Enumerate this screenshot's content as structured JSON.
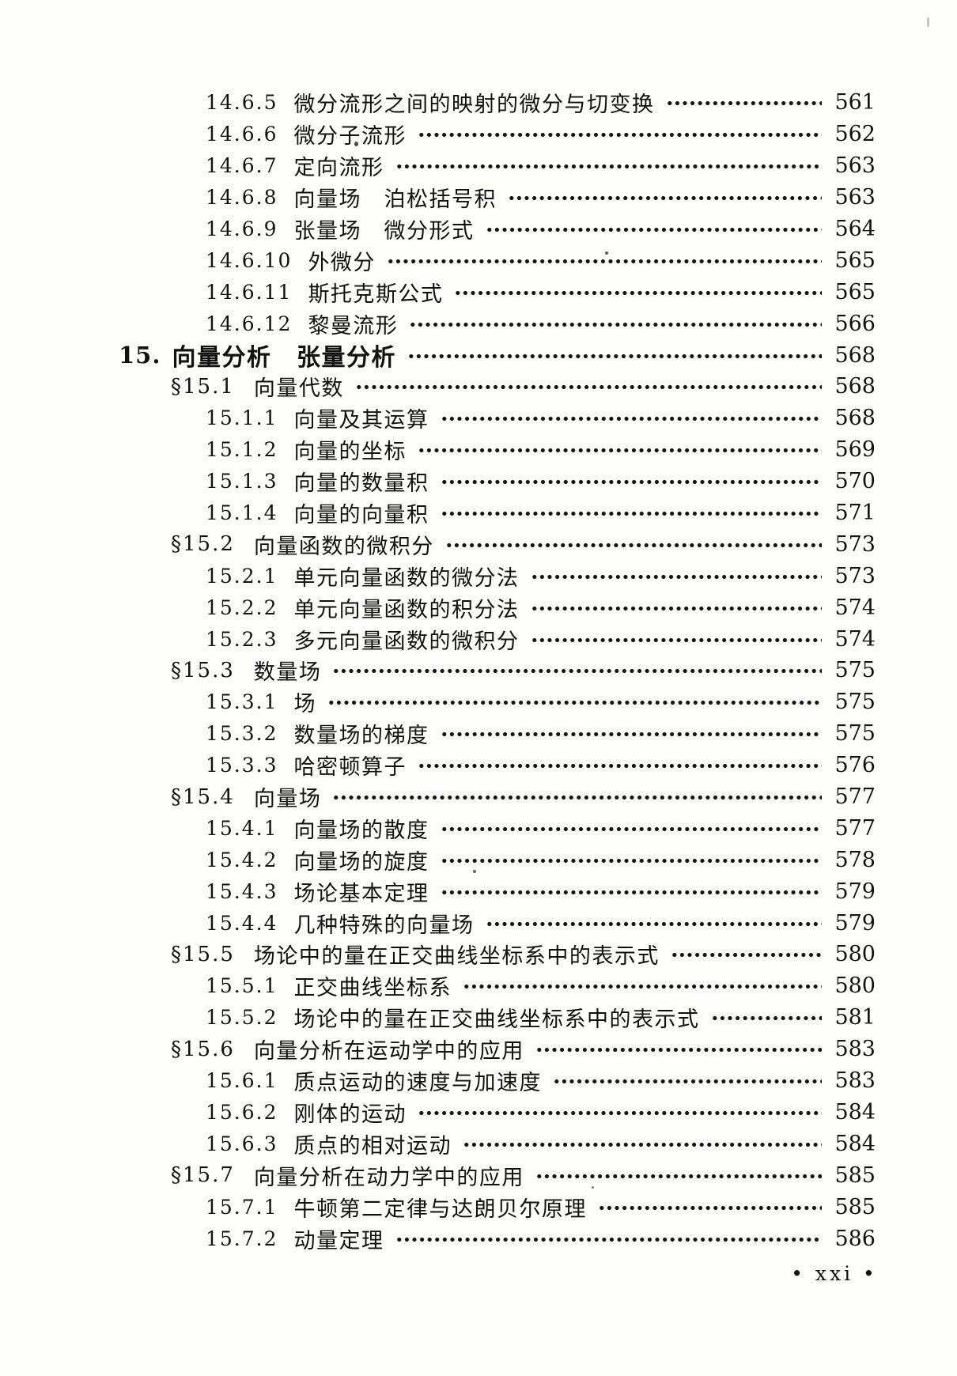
{
  "page": {
    "footer": "•  xxi  •"
  },
  "toc": {
    "entries": [
      {
        "level": "sub",
        "num": "14.6.5",
        "title": "微分流形之间的映射的微分与切变换",
        "page": "561"
      },
      {
        "level": "sub",
        "num": "14.6.6",
        "title": "微分子流形",
        "page": "562"
      },
      {
        "level": "sub",
        "num": "14.6.7",
        "title": "定向流形",
        "page": "563"
      },
      {
        "level": "sub",
        "num": "14.6.8",
        "title": "向量场　泊松括号积",
        "page": "563"
      },
      {
        "level": "sub",
        "num": "14.6.9",
        "title": "张量场　微分形式",
        "page": "564"
      },
      {
        "level": "sub",
        "num": "14.6.10",
        "title": "外微分",
        "page": "565"
      },
      {
        "level": "sub",
        "num": "14.6.11",
        "title": "斯托克斯公式",
        "page": "565"
      },
      {
        "level": "sub",
        "num": "14.6.12",
        "title": "黎曼流形",
        "page": "566"
      },
      {
        "level": "chapter",
        "num": "15.",
        "title": "向量分析　张量分析",
        "page": "568"
      },
      {
        "level": "section",
        "num": "§15.1",
        "title": "向量代数",
        "page": "568"
      },
      {
        "level": "sub",
        "num": "15.1.1",
        "title": "向量及其运算",
        "page": "568"
      },
      {
        "level": "sub",
        "num": "15.1.2",
        "title": "向量的坐标",
        "page": "569"
      },
      {
        "level": "sub",
        "num": "15.1.3",
        "title": "向量的数量积",
        "page": "570"
      },
      {
        "level": "sub",
        "num": "15.1.4",
        "title": "向量的向量积",
        "page": "571"
      },
      {
        "level": "section",
        "num": "§15.2",
        "title": "向量函数的微积分",
        "page": "573"
      },
      {
        "level": "sub",
        "num": "15.2.1",
        "title": "单元向量函数的微分法",
        "page": "573"
      },
      {
        "level": "sub",
        "num": "15.2.2",
        "title": "单元向量函数的积分法",
        "page": "574"
      },
      {
        "level": "sub",
        "num": "15.2.3",
        "title": "多元向量函数的微积分",
        "page": "574"
      },
      {
        "level": "section",
        "num": "§15.3",
        "title": "数量场",
        "page": "575"
      },
      {
        "level": "sub",
        "num": "15.3.1",
        "title": "场",
        "page": "575"
      },
      {
        "level": "sub",
        "num": "15.3.2",
        "title": "数量场的梯度",
        "page": "575"
      },
      {
        "level": "sub",
        "num": "15.3.3",
        "title": "哈密顿算子",
        "page": "576"
      },
      {
        "level": "section",
        "num": "§15.4",
        "title": "向量场",
        "page": "577"
      },
      {
        "level": "sub",
        "num": "15.4.1",
        "title": "向量场的散度",
        "page": "577"
      },
      {
        "level": "sub",
        "num": "15.4.2",
        "title": "向量场的旋度",
        "page": "578"
      },
      {
        "level": "sub",
        "num": "15.4.3",
        "title": "场论基本定理",
        "page": "579"
      },
      {
        "level": "sub",
        "num": "15.4.4",
        "title": "几种特殊的向量场",
        "page": "579"
      },
      {
        "level": "section",
        "num": "§15.5",
        "title": "场论中的量在正交曲线坐标系中的表示式",
        "page": "580"
      },
      {
        "level": "sub",
        "num": "15.5.1",
        "title": "正交曲线坐标系",
        "page": "580"
      },
      {
        "level": "sub",
        "num": "15.5.2",
        "title": "场论中的量在正交曲线坐标系中的表示式",
        "page": "581"
      },
      {
        "level": "section",
        "num": "§15.6",
        "title": "向量分析在运动学中的应用",
        "page": "583"
      },
      {
        "level": "sub",
        "num": "15.6.1",
        "title": "质点运动的速度与加速度",
        "page": "583"
      },
      {
        "level": "sub",
        "num": "15.6.2",
        "title": "刚体的运动",
        "page": "584"
      },
      {
        "level": "sub",
        "num": "15.6.3",
        "title": "质点的相对运动",
        "page": "584"
      },
      {
        "level": "section",
        "num": "§15.7",
        "title": "向量分析在动力学中的应用",
        "page": "585"
      },
      {
        "level": "sub",
        "num": "15.7.1",
        "title": "牛顿第二定律与达朗贝尔原理",
        "page": "585"
      },
      {
        "level": "sub",
        "num": "15.7.2",
        "title": "动量定理",
        "page": "586"
      }
    ]
  }
}
